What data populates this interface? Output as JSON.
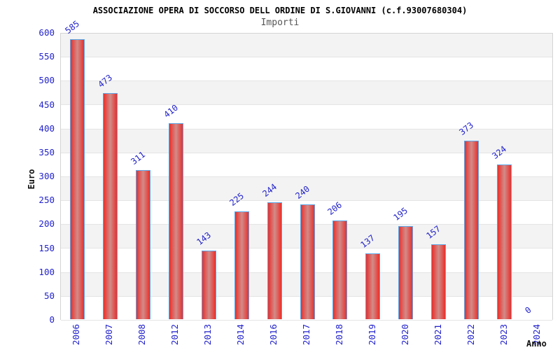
{
  "chart_data": {
    "type": "bar",
    "title": "ASSOCIAZIONE OPERA DI SOCCORSO DELL ORDINE DI S.GIOVANNI (c.f.93007680304)",
    "subtitle": "Importi",
    "xlabel": "Anno",
    "ylabel": "Euro",
    "categories": [
      "2006",
      "2007",
      "2008",
      "2012",
      "2013",
      "2014",
      "2016",
      "2017",
      "2018",
      "2019",
      "2020",
      "2021",
      "2022",
      "2023",
      "2024"
    ],
    "values": [
      585,
      473,
      311,
      410,
      143,
      225,
      244,
      240,
      206,
      137,
      195,
      157,
      373,
      324,
      0
    ],
    "ylim": [
      0,
      600
    ],
    "ytick_step": 50,
    "legend": "none",
    "grid": "horizontal-bands-every-50",
    "colors": {
      "bar_edge_red": "#e8302b",
      "bar_center_light": "#d28c89",
      "bar_border_blue": "#5aa7e8",
      "tick_label_blue": "#2222cc",
      "band_gray": "#f3f3f3",
      "band_white": "#ffffff",
      "gridline": "#e4e4e4",
      "plot_border": "#d4d4d4",
      "title_color": "#000000",
      "subtitle_color": "#555555",
      "background": "#ffffff"
    }
  }
}
